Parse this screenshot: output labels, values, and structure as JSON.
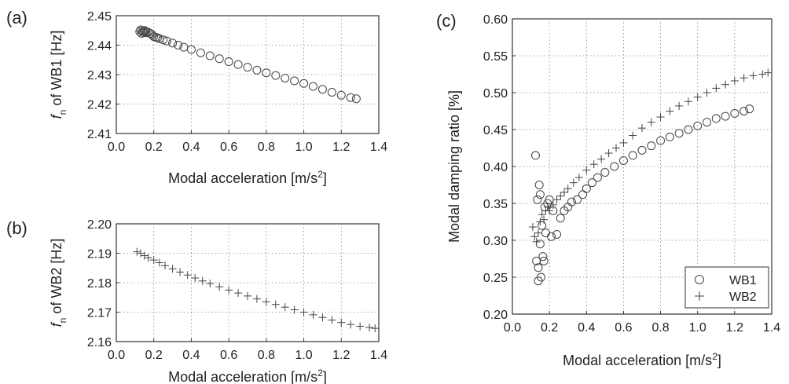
{
  "chart_data": [
    {
      "panel": "(a)",
      "type": "scatter",
      "ylabel_prefix": "f",
      "ylabel_sub": "n",
      "ylabel_rest": " of WB1 [Hz]",
      "xlabel": "Modal acceleration [m/s",
      "xlabel_sup": "2",
      "xlabel_end": "]",
      "xlim": [
        0.0,
        1.4
      ],
      "ylim": [
        2.41,
        2.45
      ],
      "xticks": [
        "0.0",
        "0.2",
        "0.4",
        "0.6",
        "0.8",
        "1.0",
        "1.2",
        "1.4"
      ],
      "yticks": [
        "2.41",
        "2.42",
        "2.43",
        "2.44",
        "2.45"
      ],
      "grid": true,
      "series": [
        {
          "marker": "circle",
          "points": [
            [
              0.125,
              2.4446
            ],
            [
              0.13,
              2.4452
            ],
            [
              0.135,
              2.444
            ],
            [
              0.14,
              2.4448
            ],
            [
              0.145,
              2.4443
            ],
            [
              0.15,
              2.445
            ],
            [
              0.155,
              2.4446
            ],
            [
              0.16,
              2.4442
            ],
            [
              0.17,
              2.4444
            ],
            [
              0.18,
              2.444
            ],
            [
              0.19,
              2.4436
            ],
            [
              0.2,
              2.4429
            ],
            [
              0.21,
              2.4427
            ],
            [
              0.22,
              2.4425
            ],
            [
              0.23,
              2.4422
            ],
            [
              0.25,
              2.4418
            ],
            [
              0.27,
              2.4414
            ],
            [
              0.3,
              2.4407
            ],
            [
              0.33,
              2.44
            ],
            [
              0.36,
              2.4393
            ],
            [
              0.4,
              2.4385
            ],
            [
              0.45,
              2.4374
            ],
            [
              0.5,
              2.4364
            ],
            [
              0.55,
              2.4354
            ],
            [
              0.6,
              2.4344
            ],
            [
              0.65,
              2.4334
            ],
            [
              0.7,
              2.4325
            ],
            [
              0.75,
              2.4315
            ],
            [
              0.8,
              2.4306
            ],
            [
              0.85,
              2.4297
            ],
            [
              0.9,
              2.4288
            ],
            [
              0.95,
              2.4279
            ],
            [
              1.0,
              2.427
            ],
            [
              1.05,
              2.426
            ],
            [
              1.1,
              2.425
            ],
            [
              1.15,
              2.424
            ],
            [
              1.2,
              2.423
            ],
            [
              1.25,
              2.4222
            ],
            [
              1.28,
              2.4218
            ]
          ]
        }
      ]
    },
    {
      "panel": "(b)",
      "type": "scatter",
      "ylabel_prefix": "f",
      "ylabel_sub": "n",
      "ylabel_rest": " of WB2 [Hz]",
      "xlabel": "Modal acceleration [m/s",
      "xlabel_sup": "2",
      "xlabel_end": "]",
      "xlim": [
        0.0,
        1.4
      ],
      "ylim": [
        2.16,
        2.2
      ],
      "xticks": [
        "0.0",
        "0.2",
        "0.4",
        "0.6",
        "0.8",
        "1.0",
        "1.2",
        "1.4"
      ],
      "yticks": [
        "2.16",
        "2.17",
        "2.18",
        "2.19",
        "2.20"
      ],
      "grid": true,
      "series": [
        {
          "marker": "plus",
          "points": [
            [
              0.11,
              2.1905
            ],
            [
              0.13,
              2.19
            ],
            [
              0.15,
              2.1892
            ],
            [
              0.17,
              2.1885
            ],
            [
              0.2,
              2.1877
            ],
            [
              0.23,
              2.1868
            ],
            [
              0.26,
              2.1858
            ],
            [
              0.3,
              2.1847
            ],
            [
              0.34,
              2.1836
            ],
            [
              0.38,
              2.1826
            ],
            [
              0.42,
              2.1816
            ],
            [
              0.46,
              2.1806
            ],
            [
              0.5,
              2.1797
            ],
            [
              0.55,
              2.1786
            ],
            [
              0.6,
              2.1775
            ],
            [
              0.65,
              2.1765
            ],
            [
              0.7,
              2.1755
            ],
            [
              0.75,
              2.1745
            ],
            [
              0.8,
              2.1735
            ],
            [
              0.85,
              2.1726
            ],
            [
              0.9,
              2.1717
            ],
            [
              0.95,
              2.1708
            ],
            [
              1.0,
              2.17
            ],
            [
              1.05,
              2.1691
            ],
            [
              1.1,
              2.1682
            ],
            [
              1.15,
              2.1673
            ],
            [
              1.2,
              2.1665
            ],
            [
              1.25,
              2.1658
            ],
            [
              1.3,
              2.1652
            ],
            [
              1.35,
              2.1648
            ],
            [
              1.38,
              2.1645
            ]
          ]
        }
      ]
    },
    {
      "panel": "(c)",
      "type": "scatter",
      "ylabel": "Modal damping ratio [%]",
      "xlabel": "Modal acceleration [m/s",
      "xlabel_sup": "2",
      "xlabel_end": "]",
      "xlim": [
        0.0,
        1.4
      ],
      "ylim": [
        0.2,
        0.6
      ],
      "xticks": [
        "0.0",
        "0.2",
        "0.4",
        "0.6",
        "0.8",
        "1.0",
        "1.2",
        "1.4"
      ],
      "yticks": [
        "0.20",
        "0.25",
        "0.30",
        "0.35",
        "0.40",
        "0.45",
        "0.50",
        "0.55",
        "0.60"
      ],
      "grid": true,
      "legend_position": "bottom-right",
      "series": [
        {
          "name": "WB1",
          "marker": "circle",
          "points": [
            [
              0.125,
              0.415
            ],
            [
              0.13,
              0.272
            ],
            [
              0.135,
              0.355
            ],
            [
              0.14,
              0.245
            ],
            [
              0.14,
              0.263
            ],
            [
              0.145,
              0.375
            ],
            [
              0.15,
              0.362
            ],
            [
              0.15,
              0.295
            ],
            [
              0.155,
              0.25
            ],
            [
              0.16,
              0.32
            ],
            [
              0.165,
              0.278
            ],
            [
              0.17,
              0.272
            ],
            [
              0.175,
              0.345
            ],
            [
              0.18,
              0.31
            ],
            [
              0.19,
              0.35
            ],
            [
              0.2,
              0.355
            ],
            [
              0.21,
              0.305
            ],
            [
              0.22,
              0.34
            ],
            [
              0.24,
              0.308
            ],
            [
              0.26,
              0.33
            ],
            [
              0.28,
              0.34
            ],
            [
              0.3,
              0.345
            ],
            [
              0.32,
              0.352
            ],
            [
              0.35,
              0.355
            ],
            [
              0.38,
              0.362
            ],
            [
              0.4,
              0.37
            ],
            [
              0.43,
              0.378
            ],
            [
              0.46,
              0.385
            ],
            [
              0.5,
              0.392
            ],
            [
              0.55,
              0.4
            ],
            [
              0.6,
              0.408
            ],
            [
              0.65,
              0.415
            ],
            [
              0.7,
              0.422
            ],
            [
              0.75,
              0.428
            ],
            [
              0.8,
              0.435
            ],
            [
              0.85,
              0.44
            ],
            [
              0.9,
              0.445
            ],
            [
              0.95,
              0.45
            ],
            [
              1.0,
              0.455
            ],
            [
              1.05,
              0.46
            ],
            [
              1.1,
              0.465
            ],
            [
              1.15,
              0.468
            ],
            [
              1.2,
              0.472
            ],
            [
              1.25,
              0.475
            ],
            [
              1.28,
              0.478
            ]
          ]
        },
        {
          "name": "WB2",
          "marker": "plus",
          "points": [
            [
              0.11,
              0.318
            ],
            [
              0.12,
              0.305
            ],
            [
              0.13,
              0.298
            ],
            [
              0.14,
              0.31
            ],
            [
              0.15,
              0.325
            ],
            [
              0.16,
              0.335
            ],
            [
              0.17,
              0.328
            ],
            [
              0.18,
              0.34
            ],
            [
              0.19,
              0.345
            ],
            [
              0.2,
              0.34
            ],
            [
              0.22,
              0.348
            ],
            [
              0.24,
              0.355
            ],
            [
              0.26,
              0.36
            ],
            [
              0.28,
              0.365
            ],
            [
              0.3,
              0.37
            ],
            [
              0.33,
              0.378
            ],
            [
              0.36,
              0.385
            ],
            [
              0.4,
              0.395
            ],
            [
              0.44,
              0.403
            ],
            [
              0.48,
              0.41
            ],
            [
              0.52,
              0.418
            ],
            [
              0.56,
              0.425
            ],
            [
              0.6,
              0.432
            ],
            [
              0.65,
              0.442
            ],
            [
              0.7,
              0.452
            ],
            [
              0.75,
              0.46
            ],
            [
              0.8,
              0.467
            ],
            [
              0.85,
              0.475
            ],
            [
              0.9,
              0.482
            ],
            [
              0.95,
              0.488
            ],
            [
              1.0,
              0.494
            ],
            [
              1.05,
              0.5
            ],
            [
              1.1,
              0.506
            ],
            [
              1.15,
              0.511
            ],
            [
              1.2,
              0.516
            ],
            [
              1.25,
              0.52
            ],
            [
              1.3,
              0.523
            ],
            [
              1.35,
              0.525
            ],
            [
              1.38,
              0.527
            ]
          ]
        }
      ]
    }
  ]
}
